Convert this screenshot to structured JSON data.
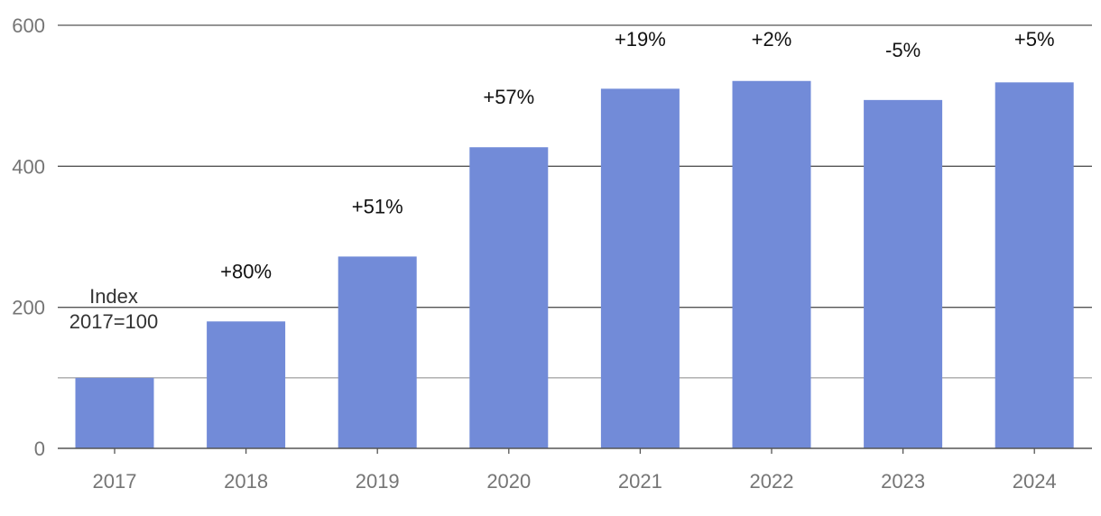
{
  "chart_data": {
    "type": "bar",
    "categories": [
      "2017",
      "2018",
      "2019",
      "2020",
      "2021",
      "2022",
      "2023",
      "2024"
    ],
    "values": [
      100,
      180,
      272,
      427,
      510,
      521,
      494,
      519
    ],
    "data_labels": [
      "",
      "+80%",
      "+51%",
      "+57%",
      "+19%",
      "+2%",
      "-5%",
      "+5%"
    ],
    "annotation": [
      "Index",
      "2017=100"
    ],
    "y_ticks": [
      0,
      200,
      400,
      600
    ],
    "reference_line": 100,
    "ylim": [
      0,
      600
    ],
    "grid": true,
    "colors": {
      "bar": "#728bd8",
      "grid": "#555555",
      "reference": "#aaaaaa",
      "tick_text": "#757575",
      "label_text": "#111111"
    }
  }
}
